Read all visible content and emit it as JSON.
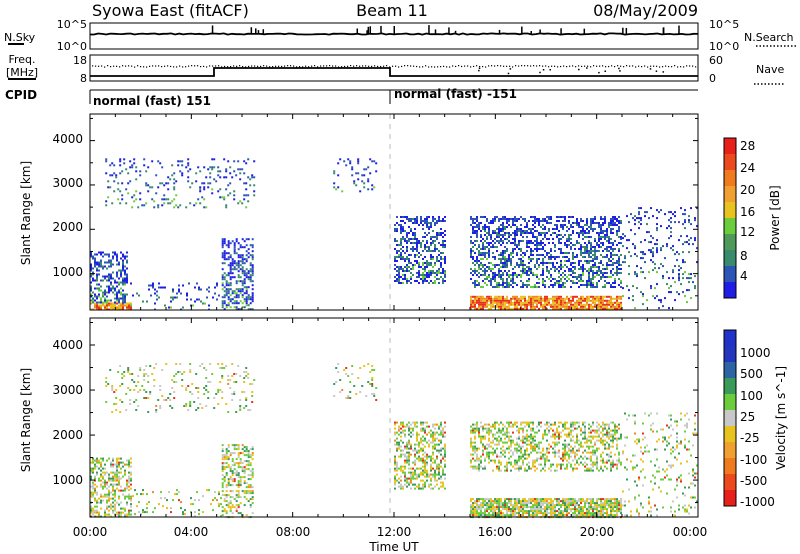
{
  "header": {
    "station": "Syowa East (fitACF)",
    "beam": "Beam 11",
    "date": "08/May/2009"
  },
  "strip_panels": {
    "nsky": {
      "label": "N.Sky",
      "right_label": "N.Search",
      "ticks_left": [
        "10^5",
        "10^0"
      ],
      "ticks_right": [
        "10^5",
        "10^0"
      ]
    },
    "freq": {
      "label_line1": "Freq.",
      "label_line2": "[MHz]",
      "right_label": "Nave",
      "ticks_left": [
        "18",
        "8"
      ],
      "ticks_right": [
        "60",
        "0"
      ]
    },
    "cpid": {
      "label": "CPID",
      "modes": [
        {
          "label": "normal (fast) 151",
          "start_hour": 0
        },
        {
          "label": "normal (fast) -151",
          "start_hour": 12
        }
      ]
    }
  },
  "chart_data": [
    {
      "type": "heatmap",
      "title": "",
      "xlabel": "Time UT",
      "ylabel": "Slant Range [km]",
      "x_range_hours": [
        0,
        24
      ],
      "x_tick_labels": [
        "00:00",
        "04:00",
        "08:00",
        "12:00",
        "16:00",
        "20:00",
        "00:00"
      ],
      "ylim": [
        180,
        4600
      ],
      "y_tick_labels": [
        "1000",
        "2000",
        "3000",
        "4000"
      ],
      "colorbar": {
        "label": "Power [dB]",
        "tick_labels": [
          "4",
          "8",
          "12",
          "16",
          "20",
          "24",
          "28"
        ],
        "colors": [
          "#1e1ee6",
          "#2d55b8",
          "#3a8a6e",
          "#6ccd3c",
          "#e8c21e",
          "#f08a1e",
          "#e8301a"
        ]
      },
      "echo_regions": [
        {
          "t0": 0.0,
          "t1": 1.6,
          "r0": 200,
          "r1": 350,
          "intensity": "strong"
        },
        {
          "t0": 0.0,
          "t1": 1.5,
          "r0": 350,
          "r1": 1500,
          "intensity": "medium"
        },
        {
          "t0": 0.6,
          "t1": 6.5,
          "r0": 2500,
          "r1": 3600,
          "intensity": "sparse"
        },
        {
          "t0": 1.5,
          "t1": 5.2,
          "r0": 200,
          "r1": 800,
          "intensity": "sparse"
        },
        {
          "t0": 5.2,
          "t1": 6.4,
          "r0": 200,
          "r1": 1800,
          "intensity": "medium"
        },
        {
          "t0": 9.6,
          "t1": 11.3,
          "r0": 2800,
          "r1": 3600,
          "intensity": "sparse"
        },
        {
          "t0": 12.0,
          "t1": 14.0,
          "r0": 800,
          "r1": 2300,
          "intensity": "medium"
        },
        {
          "t0": 15.0,
          "t1": 21.0,
          "r0": 200,
          "r1": 500,
          "intensity": "strong"
        },
        {
          "t0": 15.0,
          "t1": 21.0,
          "r0": 700,
          "r1": 2300,
          "intensity": "medium"
        },
        {
          "t0": 21.0,
          "t1": 24.0,
          "r0": 200,
          "r1": 2500,
          "intensity": "sparse"
        }
      ]
    },
    {
      "type": "heatmap",
      "title": "",
      "xlabel": "Time UT",
      "ylabel": "Slant Range [km]",
      "x_range_hours": [
        0,
        24
      ],
      "x_tick_labels": [
        "00:00",
        "04:00",
        "08:00",
        "12:00",
        "16:00",
        "20:00",
        "00:00"
      ],
      "ylim": [
        180,
        4600
      ],
      "y_tick_labels": [
        "1000",
        "2000",
        "3000",
        "4000"
      ],
      "colorbar": {
        "label": "Velocity [m s^-1]",
        "tick_labels": [
          "1000",
          "500",
          "100",
          "25",
          "-25",
          "-100",
          "-500",
          "-1000"
        ],
        "colors": [
          "#2032c8",
          "#2e64a4",
          "#3a9a5a",
          "#6ccd3c",
          "#c8c8c8",
          "#e8c21e",
          "#f08a1e",
          "#e8301a"
        ]
      },
      "echo_regions": [
        {
          "t0": 0.0,
          "t1": 1.6,
          "r0": 200,
          "r1": 1500,
          "intensity": "medium"
        },
        {
          "t0": 0.6,
          "t1": 6.5,
          "r0": 2500,
          "r1": 3600,
          "intensity": "sparse"
        },
        {
          "t0": 1.5,
          "t1": 5.2,
          "r0": 200,
          "r1": 800,
          "intensity": "sparse"
        },
        {
          "t0": 5.2,
          "t1": 6.4,
          "r0": 200,
          "r1": 1800,
          "intensity": "medium"
        },
        {
          "t0": 9.6,
          "t1": 11.3,
          "r0": 2800,
          "r1": 3600,
          "intensity": "sparse"
        },
        {
          "t0": 12.0,
          "t1": 14.0,
          "r0": 800,
          "r1": 2300,
          "intensity": "medium"
        },
        {
          "t0": 15.0,
          "t1": 21.0,
          "r0": 200,
          "r1": 600,
          "intensity": "strong"
        },
        {
          "t0": 15.0,
          "t1": 21.0,
          "r0": 1200,
          "r1": 2300,
          "intensity": "medium"
        },
        {
          "t0": 21.0,
          "t1": 24.0,
          "r0": 200,
          "r1": 2500,
          "intensity": "sparse"
        }
      ]
    }
  ]
}
